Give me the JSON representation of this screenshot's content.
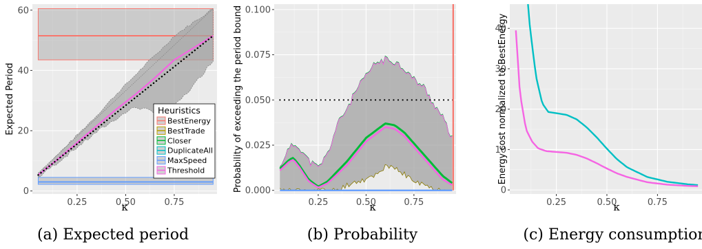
{
  "chart_data": [
    {
      "type": "line",
      "caption": "(a) Expected period",
      "ylabel": "Expected Period",
      "xlabel": "κ",
      "xlim": [
        0.02,
        0.97
      ],
      "ylim": [
        -1,
        62
      ],
      "xticks": [
        0.25,
        0.5,
        0.75
      ],
      "xtick_labels": [
        "0.25",
        "0.50",
        "0.75"
      ],
      "yticks": [
        0,
        20,
        40,
        60
      ],
      "ytick_labels": [
        "0",
        "20",
        "40",
        "60"
      ],
      "grid": true,
      "legend": {
        "title": "Heuristics",
        "placement": "bottom-right",
        "entries": [
          {
            "name": "BestEnergy",
            "color": "#F8766D"
          },
          {
            "name": "BestTrade",
            "color": "#B79F00"
          },
          {
            "name": "Closer",
            "color": "#00BA38"
          },
          {
            "name": "DuplicateAll",
            "color": "#00BFC4"
          },
          {
            "name": "MaxSpeed",
            "color": "#619CFF"
          },
          {
            "name": "Threshold",
            "color": "#F564E3"
          }
        ]
      },
      "bands": [
        {
          "series": "BestEnergy",
          "x": [
            0.05,
            0.95
          ],
          "lower": [
            43.5,
            43.5
          ],
          "upper": [
            60.5,
            60.5
          ],
          "mean": [
            51.5,
            51.5
          ]
        },
        {
          "series": "MaxSpeed",
          "x": [
            0.05,
            0.95
          ],
          "lower": [
            2.2,
            2.2
          ],
          "upper": [
            4.5,
            4.5
          ],
          "mean": [
            3.0,
            3.0
          ]
        },
        {
          "series": "Threshold",
          "x": [
            0.05,
            0.15,
            0.25,
            0.35,
            0.45,
            0.55,
            0.65,
            0.7,
            0.75,
            0.85,
            0.95
          ],
          "lower": [
            4.5,
            9.5,
            14.5,
            19.5,
            24,
            28,
            26,
            25.5,
            28,
            35,
            43.5
          ],
          "upper": [
            6,
            12,
            18.5,
            25,
            32,
            38.5,
            45,
            48,
            51.5,
            56,
            60.5
          ],
          "mean": [
            5.3,
            10.5,
            16,
            21.5,
            27,
            32,
            37.5,
            40.5,
            43.5,
            47.5,
            51.5
          ]
        }
      ],
      "dotted_line": {
        "x": [
          0.05,
          0.95
        ],
        "y": [
          5.3,
          51.5
        ]
      }
    },
    {
      "type": "line",
      "caption": "(b) Probability",
      "ylabel": "Probability of exceeding the period bound",
      "xlabel": "κ",
      "xlim": [
        0.02,
        0.97
      ],
      "ylim": [
        -0.002,
        0.103
      ],
      "xticks": [
        0.25,
        0.5,
        0.75
      ],
      "xtick_labels": [
        "0.25",
        "0.50",
        "0.75"
      ],
      "yticks": [
        0,
        0.025,
        0.05,
        0.075,
        0.1
      ],
      "ytick_labels": [
        "0.000",
        "0.025",
        "0.050",
        "0.075",
        "0.100"
      ],
      "grid": true,
      "reference_line": {
        "y": 0.05,
        "style": "dotted"
      },
      "series": [
        {
          "name": "Closer",
          "color": "#00BA38",
          "x": [
            0.05,
            0.1,
            0.12,
            0.15,
            0.2,
            0.25,
            0.3,
            0.4,
            0.5,
            0.6,
            0.65,
            0.7,
            0.8,
            0.9,
            0.95
          ],
          "y": [
            0.012,
            0.017,
            0.018,
            0.014,
            0.006,
            0.002,
            0.005,
            0.016,
            0.029,
            0.037,
            0.036,
            0.032,
            0.02,
            0.008,
            0.004
          ]
        },
        {
          "name": "Threshold",
          "color": "#F564E3",
          "x": [
            0.05,
            0.1,
            0.12,
            0.15,
            0.2,
            0.25,
            0.3,
            0.4,
            0.5,
            0.6,
            0.65,
            0.7,
            0.8,
            0.9,
            0.95
          ],
          "y": [
            0.011,
            0.016,
            0.017,
            0.013,
            0.005,
            0.0015,
            0.004,
            0.014,
            0.027,
            0.035,
            0.034,
            0.03,
            0.018,
            0.006,
            0.003
          ]
        },
        {
          "name": "MaxSpeed",
          "color": "#619CFF",
          "x": [
            0.05,
            0.95
          ],
          "y": [
            0,
            0
          ]
        },
        {
          "name": "BestEnergy",
          "color": "#F8766D",
          "x": [
            0.955,
            0.955
          ],
          "y": [
            0,
            0.103
          ]
        }
      ],
      "band": {
        "x": [
          0.05,
          0.08,
          0.12,
          0.15,
          0.2,
          0.25,
          0.3,
          0.35,
          0.4,
          0.45,
          0.5,
          0.55,
          0.6,
          0.65,
          0.7,
          0.75,
          0.8,
          0.85,
          0.9,
          0.95
        ],
        "lower": [
          0.0,
          0.0,
          0.0,
          0.0,
          0.0,
          0.0,
          0.0,
          0.0,
          0.003,
          0.005,
          0.006,
          0.009,
          0.013,
          0.012,
          0.009,
          0.005,
          0.003,
          0.001,
          0.0,
          0.0
        ],
        "upper": [
          0.012,
          0.02,
          0.025,
          0.024,
          0.016,
          0.012,
          0.02,
          0.036,
          0.045,
          0.055,
          0.063,
          0.07,
          0.072,
          0.071,
          0.067,
          0.061,
          0.057,
          0.048,
          0.04,
          0.028
        ]
      }
    },
    {
      "type": "line",
      "caption": "(c) Energy consumption",
      "ylabel": "Energy cost normalized to BestEnergy",
      "xlabel": "κ",
      "xlim": [
        0.02,
        0.97
      ],
      "ylim": [
        -1,
        46
      ],
      "xticks": [
        0.25,
        0.5,
        0.75
      ],
      "xtick_labels": [
        "0.25",
        "0.50",
        "0.75"
      ],
      "yticks": [
        0,
        10,
        20,
        30,
        40
      ],
      "ytick_labels": [
        "0",
        "10",
        "20",
        "30",
        "40"
      ],
      "grid": true,
      "series": [
        {
          "name": "DuplicateAll",
          "color": "#00BFC4",
          "x": [
            0.11,
            0.12,
            0.15,
            0.18,
            0.21,
            0.25,
            0.3,
            0.35,
            0.4,
            0.45,
            0.5,
            0.55,
            0.6,
            0.7,
            0.8,
            0.9,
            0.95
          ],
          "y": [
            46,
            40,
            28,
            21.5,
            19.3,
            19,
            18.6,
            17.5,
            15.5,
            13,
            10.2,
            7.6,
            5.6,
            3.2,
            2,
            1.4,
            1.2
          ]
        },
        {
          "name": "Threshold",
          "color": "#F564E3",
          "x": [
            0.05,
            0.07,
            0.1,
            0.13,
            0.16,
            0.2,
            0.25,
            0.3,
            0.35,
            0.4,
            0.45,
            0.5,
            0.55,
            0.6,
            0.7,
            0.8,
            0.9,
            0.95
          ],
          "y": [
            39.5,
            24,
            15,
            12,
            10.3,
            9.6,
            9.4,
            9.2,
            8.7,
            7.8,
            6.6,
            5.3,
            4.1,
            3.2,
            1.9,
            1.3,
            1.0,
            0.9
          ]
        }
      ]
    }
  ]
}
